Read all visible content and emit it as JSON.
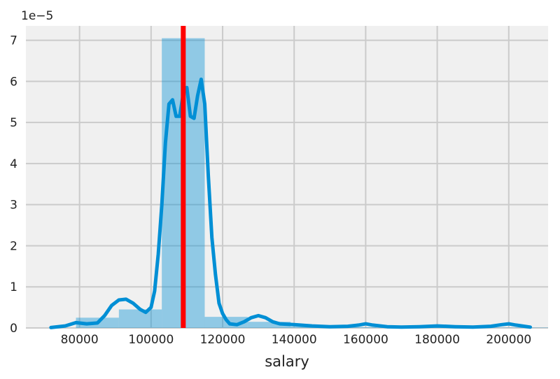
{
  "chart_data": {
    "type": "histogram-kde",
    "xlabel": "salary",
    "ylabel": "",
    "y_offset_label": "1e−5",
    "xlim": [
      65000,
      211000
    ],
    "ylim": [
      0,
      7.35
    ],
    "xticks": [
      80000,
      100000,
      120000,
      140000,
      160000,
      180000,
      200000
    ],
    "xtick_labels": [
      "80000",
      "100000",
      "120000",
      "140000",
      "160000",
      "180000",
      "200000"
    ],
    "yticks": [
      0,
      1,
      2,
      3,
      4,
      5,
      6,
      7
    ],
    "ytick_labels": [
      "0",
      "1",
      "2",
      "3",
      "4",
      "5",
      "6",
      "7"
    ],
    "grid": true,
    "histogram": {
      "color": "#008fd5",
      "bins": [
        {
          "x0": 79000,
          "x1": 91000,
          "density": 0.25
        },
        {
          "x0": 91000,
          "x1": 103000,
          "density": 0.45
        },
        {
          "x0": 103000,
          "x1": 115000,
          "density": 7.05
        },
        {
          "x0": 115000,
          "x1": 127000,
          "density": 0.27
        },
        {
          "x0": 127000,
          "x1": 139000,
          "density": 0.15
        },
        {
          "x0": 139000,
          "x1": 151000,
          "density": 0.03
        },
        {
          "x0": 151000,
          "x1": 163000,
          "density": 0.02
        },
        {
          "x0": 163000,
          "x1": 175000,
          "density": 0.01
        },
        {
          "x0": 175000,
          "x1": 187000,
          "density": 0.01
        },
        {
          "x0": 187000,
          "x1": 199000,
          "density": 0.01
        },
        {
          "x0": 199000,
          "x1": 211000,
          "density": 0.01
        }
      ]
    },
    "kde": {
      "color": "#008fd5",
      "x": [
        72000,
        76000,
        79000,
        82000,
        85000,
        87000,
        89000,
        91000,
        93000,
        95000,
        97000,
        98500,
        100000,
        101000,
        102000,
        103000,
        104000,
        105000,
        106000,
        107000,
        108000,
        109000,
        110000,
        111000,
        112000,
        113000,
        114000,
        115000,
        116000,
        117000,
        118000,
        119000,
        120000,
        121000,
        122000,
        124000,
        126000,
        128000,
        130000,
        132000,
        134000,
        136000,
        140000,
        145000,
        150000,
        155000,
        158000,
        160000,
        162000,
        166000,
        170000,
        175000,
        180000,
        185000,
        190000,
        195000,
        198000,
        200000,
        202000,
        206000
      ],
      "y": [
        0.01,
        0.05,
        0.13,
        0.1,
        0.12,
        0.3,
        0.55,
        0.68,
        0.7,
        0.6,
        0.45,
        0.38,
        0.5,
        0.9,
        1.8,
        3.0,
        4.5,
        5.45,
        5.55,
        5.15,
        5.15,
        5.7,
        5.85,
        5.15,
        5.1,
        5.65,
        6.05,
        5.45,
        3.7,
        2.2,
        1.3,
        0.6,
        0.35,
        0.2,
        0.1,
        0.08,
        0.15,
        0.25,
        0.3,
        0.25,
        0.15,
        0.1,
        0.08,
        0.05,
        0.03,
        0.04,
        0.07,
        0.1,
        0.07,
        0.03,
        0.02,
        0.03,
        0.05,
        0.03,
        0.02,
        0.04,
        0.08,
        0.1,
        0.07,
        0.02
      ]
    },
    "vline": {
      "x": 109000,
      "color": "#ff0000"
    }
  }
}
